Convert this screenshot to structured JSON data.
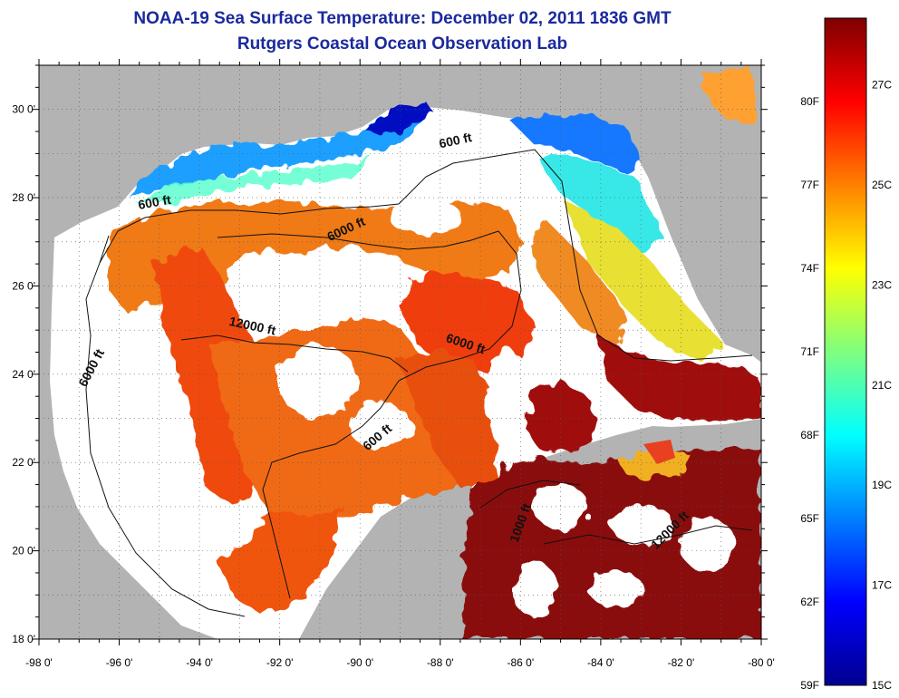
{
  "header": {
    "title": "NOAA-19 Sea Surface Temperature:  December 02, 2011 1836 GMT",
    "subtitle": "Rutgers Coastal Ocean Observation Lab"
  },
  "map": {
    "lon_range": [
      -98,
      -80
    ],
    "lat_range": [
      18,
      31
    ],
    "x_ticks": [
      {
        "value": -98,
        "label": "-98 0'"
      },
      {
        "value": -96,
        "label": "-96 0'"
      },
      {
        "value": -94,
        "label": "-94 0'"
      },
      {
        "value": -92,
        "label": "-92 0'"
      },
      {
        "value": -90,
        "label": "-90 0'"
      },
      {
        "value": -88,
        "label": "-88 0'"
      },
      {
        "value": -86,
        "label": "-86 0'"
      },
      {
        "value": -84,
        "label": "-84 0'"
      },
      {
        "value": -82,
        "label": "-82 0'"
      },
      {
        "value": -80,
        "label": "-80 0'"
      }
    ],
    "y_ticks": [
      {
        "value": 30,
        "label": "30 0'"
      },
      {
        "value": 28,
        "label": "28 0'"
      },
      {
        "value": 26,
        "label": "26 0'"
      },
      {
        "value": 24,
        "label": "24 0'"
      },
      {
        "value": 22,
        "label": "22 0'"
      },
      {
        "value": 20,
        "label": "20 0'"
      },
      {
        "value": 18,
        "label": "18 0'"
      }
    ],
    "contour_labels": [
      {
        "text": "600 ft",
        "lon": -95.1,
        "lat": 27.8,
        "angle": -10
      },
      {
        "text": "600 ft",
        "lon": -87.6,
        "lat": 29.2,
        "angle": -12
      },
      {
        "text": "6000 ft",
        "lon": -90.3,
        "lat": 27.2,
        "angle": -25
      },
      {
        "text": "6000 ft",
        "lon": -96.6,
        "lat": 24.1,
        "angle": -62
      },
      {
        "text": "12000 ft",
        "lon": -92.7,
        "lat": 25.0,
        "angle": 12
      },
      {
        "text": "6000 ft",
        "lon": -87.4,
        "lat": 24.6,
        "angle": 18
      },
      {
        "text": "600 ft",
        "lon": -89.5,
        "lat": 22.5,
        "angle": -40
      },
      {
        "text": "1000 ft",
        "lon": -85.9,
        "lat": 20.6,
        "angle": -70
      },
      {
        "text": "12000 ft",
        "lon": -82.2,
        "lat": 20.4,
        "angle": -45
      }
    ],
    "colors": {
      "land": "#b3b3b3",
      "no_data": "#ffffff"
    }
  },
  "colorbar": {
    "min_f": 59,
    "max_f": 83,
    "f_ticks": [
      {
        "value": 80,
        "label": "80F"
      },
      {
        "value": 77,
        "label": "77F"
      },
      {
        "value": 74,
        "label": "74F"
      },
      {
        "value": 71,
        "label": "71F"
      },
      {
        "value": 68,
        "label": "68F"
      },
      {
        "value": 65,
        "label": "65F"
      },
      {
        "value": 62,
        "label": "62F"
      },
      {
        "value": 59,
        "label": "59F"
      }
    ],
    "c_ticks": [
      {
        "value": 27,
        "label": "27C"
      },
      {
        "value": 25,
        "label": "25C"
      },
      {
        "value": 23,
        "label": "23C"
      },
      {
        "value": 21,
        "label": "21C"
      },
      {
        "value": 19,
        "label": "19C"
      },
      {
        "value": 17,
        "label": "17C"
      },
      {
        "value": 15,
        "label": "15C"
      }
    ]
  }
}
